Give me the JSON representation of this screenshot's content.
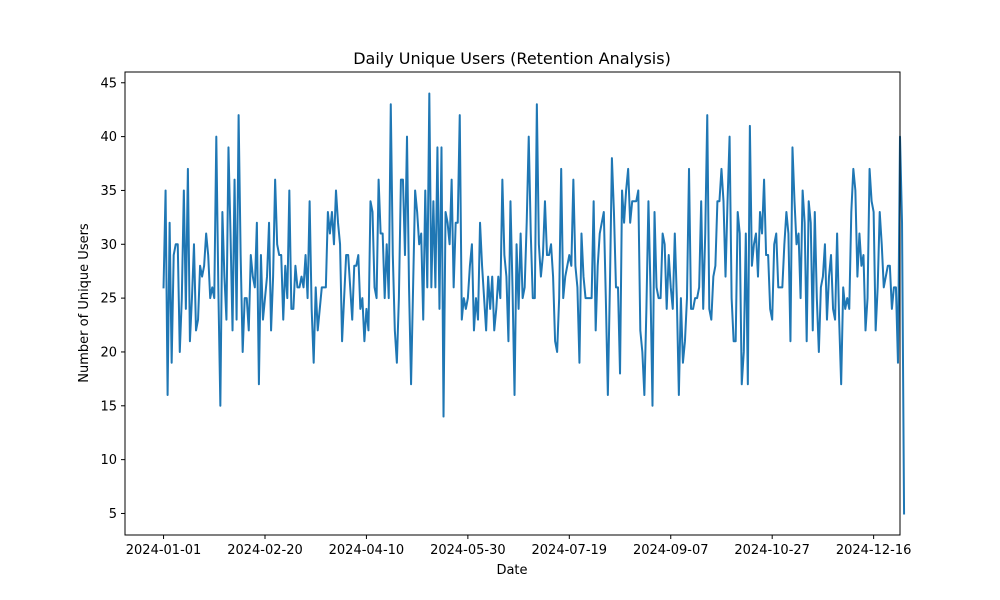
{
  "chart_data": {
    "type": "line",
    "title": "Daily Unique Users (Retention Analysis)",
    "xlabel": "Date",
    "ylabel": "Number of Unique Users",
    "xlim": [
      "2023-12-13",
      "2024-12-29"
    ],
    "ylim": [
      3,
      46
    ],
    "x_ticks": [
      "2024-01-01",
      "2024-02-20",
      "2024-04-10",
      "2024-05-30",
      "2024-07-19",
      "2024-09-07",
      "2024-10-27",
      "2024-12-16"
    ],
    "y_ticks": [
      5,
      10,
      15,
      20,
      25,
      30,
      35,
      40,
      45
    ],
    "grid": false,
    "legend": "none",
    "colors": {
      "line": "#1f77b4"
    },
    "series": [
      {
        "x_start": "2024-01-01",
        "x_step": "1 day",
        "values": [
          26,
          35,
          16,
          32,
          19,
          29,
          30,
          30,
          20,
          25,
          35,
          24,
          37,
          21,
          25,
          30,
          22,
          23,
          28,
          27,
          28,
          31,
          29,
          25,
          26,
          25,
          40,
          26,
          15,
          33,
          27,
          23,
          39,
          31,
          22,
          36,
          23,
          42,
          29,
          20,
          25,
          25,
          22,
          29,
          27,
          26,
          32,
          17,
          29,
          23,
          25,
          27,
          32,
          22,
          27,
          36,
          30,
          29,
          29,
          23,
          28,
          25,
          35,
          24,
          24,
          28,
          26,
          26,
          27,
          26,
          29,
          25,
          34,
          24,
          19,
          26,
          22,
          24,
          26,
          26,
          26,
          33,
          31,
          33,
          30,
          35,
          32,
          30,
          21,
          25,
          29,
          29,
          26,
          23,
          28,
          28,
          29,
          24,
          25,
          21,
          24,
          22,
          34,
          33,
          26,
          25,
          36,
          31,
          31,
          25,
          30,
          25,
          43,
          29,
          22,
          19,
          25,
          36,
          36,
          29,
          40,
          26,
          17,
          26,
          35,
          33,
          30,
          31,
          23,
          35,
          26,
          44,
          26,
          34,
          26,
          39,
          24,
          39,
          14,
          33,
          32,
          30,
          36,
          26,
          32,
          32,
          42,
          23,
          25,
          24,
          25,
          28,
          30,
          22,
          25,
          23,
          32,
          28,
          25,
          22,
          27,
          24,
          27,
          22,
          24,
          27,
          25,
          36,
          29,
          27,
          21,
          34,
          26,
          16,
          30,
          24,
          31,
          25,
          26,
          32,
          40,
          31,
          25,
          25,
          43,
          30,
          27,
          29,
          34,
          29,
          29,
          30,
          27,
          21,
          20,
          25,
          37,
          25,
          27,
          28,
          29,
          28,
          36,
          28,
          26,
          19,
          31,
          27,
          25,
          25,
          25,
          25,
          34,
          22,
          28,
          31,
          32,
          33,
          25,
          16,
          26,
          38,
          33,
          26,
          26,
          18,
          35,
          32,
          35,
          37,
          32,
          34,
          34,
          34,
          35,
          22,
          20,
          16,
          24,
          34,
          26,
          15,
          33,
          26,
          25,
          25,
          31,
          30,
          24,
          29,
          26,
          24,
          31,
          25,
          16,
          25,
          19,
          21,
          25,
          37,
          24,
          24,
          25,
          25,
          26,
          34,
          24,
          31,
          42,
          24,
          23,
          27,
          28,
          34,
          34,
          37,
          34,
          27,
          34,
          40,
          25,
          21,
          21,
          33,
          31,
          17,
          20,
          31,
          17,
          41,
          28,
          30,
          31,
          27,
          33,
          31,
          36,
          29,
          29,
          24,
          23,
          30,
          31,
          26,
          26,
          26,
          30,
          33,
          31,
          21,
          39,
          34,
          30,
          31,
          25,
          35,
          32,
          21,
          34,
          32,
          22,
          33,
          25,
          20,
          26,
          27,
          30,
          23,
          27,
          29,
          24,
          23,
          31,
          23,
          17,
          26,
          24,
          25,
          24,
          33,
          37,
          35,
          27,
          31,
          28,
          29,
          22,
          25,
          37,
          34,
          33,
          22,
          26,
          33,
          30,
          26,
          27,
          28,
          28,
          24,
          26,
          26,
          19,
          40,
          32,
          5
        ]
      }
    ]
  }
}
